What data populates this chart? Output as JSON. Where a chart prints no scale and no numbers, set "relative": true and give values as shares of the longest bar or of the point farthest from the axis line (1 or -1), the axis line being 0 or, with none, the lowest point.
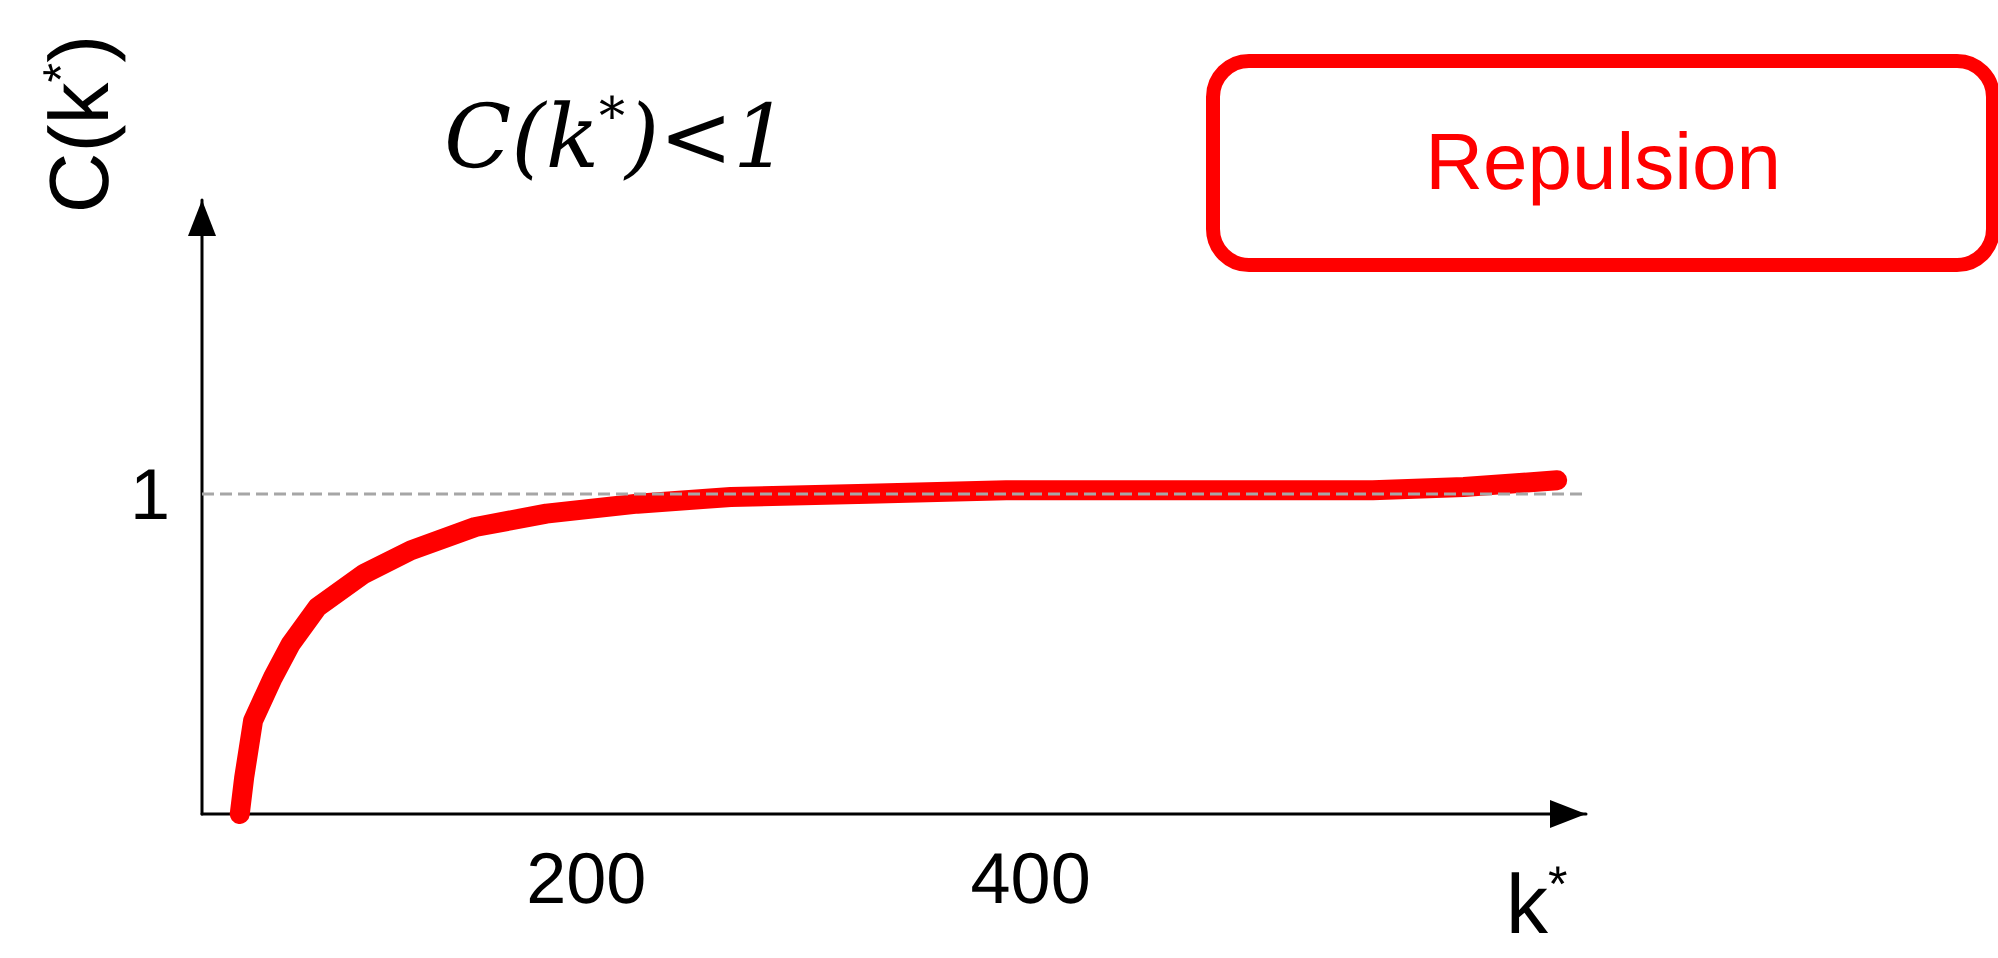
{
  "chart_data": {
    "type": "line",
    "relative": true,
    "xlabel": "k$^{*}$",
    "ylabel": "C(k$^{*}$)",
    "annotations": [
      "C(k$^{*}$)<1",
      "Repulsion"
    ],
    "x": [
      44,
      46,
      50,
      59,
      67,
      79,
      100,
      121,
      150,
      182,
      223,
      265,
      327,
      389,
      472,
      554,
      595,
      637
    ],
    "series": [
      {
        "color": "#ff0000",
        "values": [
          0,
          0.11,
          0.28,
          0.41,
          0.51,
          0.62,
          0.72,
          0.79,
          0.86,
          0.9,
          0.93,
          0.95,
          0.96,
          0.97,
          0.97,
          0.97,
          0.98,
          1.0
        ]
      }
    ],
    "xlim": [
      27,
      650
    ],
    "xticks": [
      200,
      400
    ],
    "ref_lines": [
      {
        "axis": "y",
        "value": 0.96,
        "label": "1",
        "color": "#a6a6a6",
        "line_style": "dashed"
      }
    ],
    "grid": false,
    "line_style": "solid"
  }
}
